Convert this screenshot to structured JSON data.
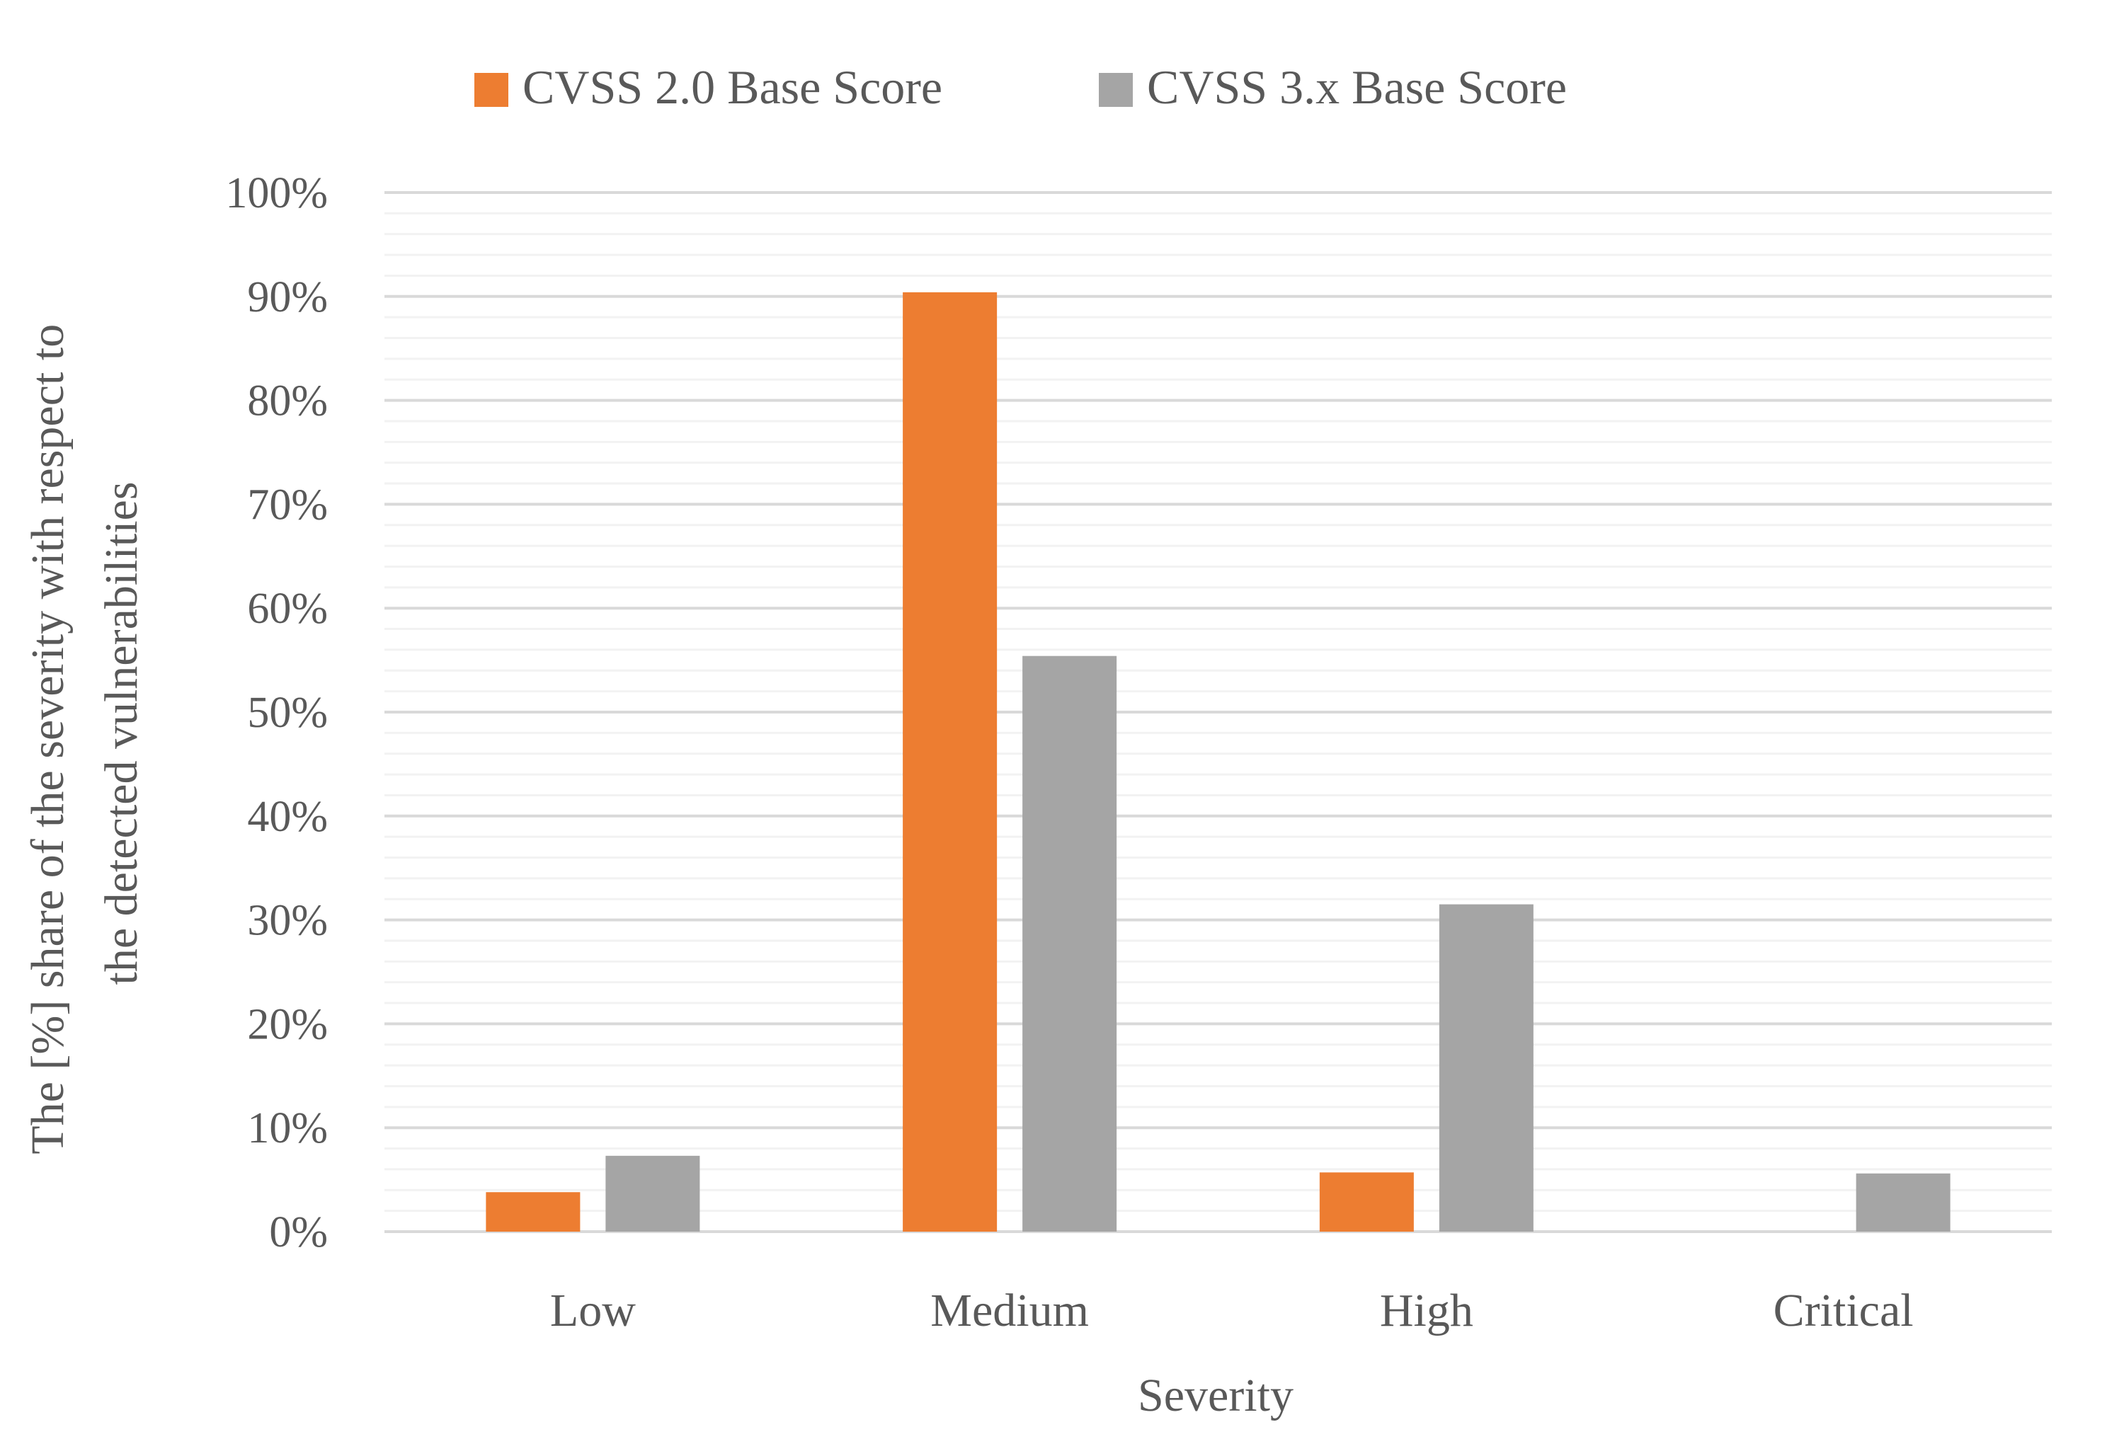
{
  "chart_data": {
    "type": "bar",
    "title": "",
    "xlabel": "Severity",
    "ylabel_lines": [
      "The [%] share of the severity with respect to",
      "the detected vulnerabilities"
    ],
    "categories": [
      "Low",
      "Medium",
      "High",
      "Critical"
    ],
    "series": [
      {
        "name": "CVSS 2.0 Base Score",
        "color": "#ED7D31",
        "values": [
          3.8,
          90.4,
          5.7,
          0
        ]
      },
      {
        "name": "CVSS 3.x Base Score",
        "color": "#A5A5A5",
        "values": [
          7.3,
          55.4,
          31.5,
          5.6
        ]
      }
    ],
    "ylim": [
      0,
      100
    ],
    "y_major_step": 10,
    "y_minor_step": 2,
    "y_tick_labels": [
      "0%",
      "10%",
      "20%",
      "30%",
      "40%",
      "50%",
      "60%",
      "70%",
      "80%",
      "90%",
      "100%"
    ],
    "grid": true,
    "legend_position": "top-center",
    "colors": {
      "major_grid": "#D9D9D9",
      "minor_grid": "#F2F2F2",
      "axis": "#D9D9D9",
      "text": "#595959"
    }
  }
}
